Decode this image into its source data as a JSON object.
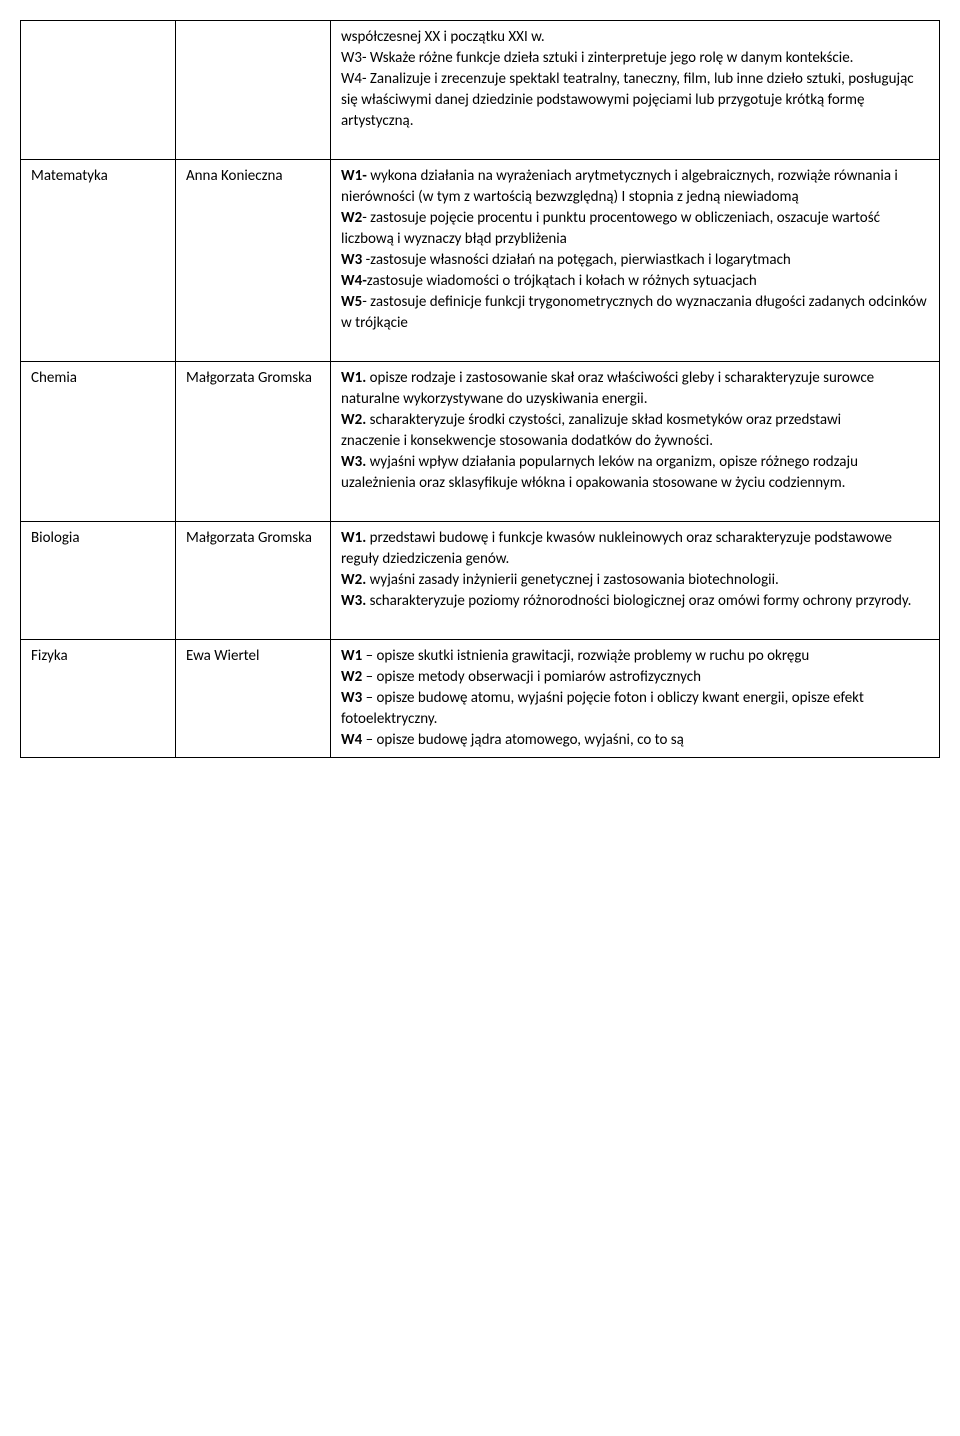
{
  "rows": [
    {
      "subject": "",
      "teacher": "",
      "content_html": "współczesnej XX i początku XXI w.<br>W3- Wskaże różne funkcje dzieła sztuki i zinterpretuje jego rolę w danym kontekście.<br>W4- Zanalizuje i zrecenzuje spektakl teatralny, taneczny, film, lub inne dzieło sztuki, posługując się właściwymi danej dziedzinie podstawowymi pojęciami lub przygotuje krótką formę artystyczną.<br>&nbsp;"
    },
    {
      "subject": "Matematyka",
      "teacher": "Anna Konieczna",
      "content_html": "<span class=\"bold\">W1-</span> wykona działania na wyrażeniach arytmetycznych i algebraicznych, rozwiąże równania i nierówności (w tym z wartością bezwzględną) I stopnia z jedną niewiadomą<br><span class=\"bold\">W2</span>- zastosuje pojęcie procentu i punktu procentowego w obliczeniach, oszacuje wartość liczbową i wyznaczy błąd przybliżenia<br><span class=\"bold\">W3</span> -zastosuje własności działań na potęgach, pierwiastkach i logarytmach<br><span class=\"bold\">W4-</span>zastosuje wiadomości o trójkątach i kołach w różnych sytuacjach<br><span class=\"bold\">W5</span>- zastosuje definicje funkcji trygonometrycznych do wyznaczania długości  zadanych odcinków w trójkącie<br>&nbsp;"
    },
    {
      "subject": "Chemia",
      "teacher": "Małgorzata Gromska",
      "content_html": "<span class=\"bold\">W1.</span> opisze rodzaje i zastosowanie skał oraz właściwości gleby i scharakteryzuje surowce naturalne wykorzystywane do uzyskiwania energii.<br><span class=\"bold\">W2.</span> scharakteryzuje środki czystości, zanalizuje skład kosmetyków oraz przedstawi<br>znaczenie i konsekwencje stosowania dodatków do żywności.<br><span class=\"bold\">W3.</span> wyjaśni wpływ działania popularnych leków na organizm, opisze różnego rodzaju<br>uzależnienia oraz sklasyfikuje włókna i opakowania stosowane w życiu codziennym.<br>&nbsp;"
    },
    {
      "subject": "Biologia",
      "teacher": "Małgorzata Gromska",
      "content_html": "<span class=\"bold\">W1.</span> przedstawi budowę i funkcje kwasów nukleinowych oraz scharakteryzuje podstawowe reguły dziedziczenia genów.<br><span class=\"bold\">W2.</span> wyjaśni zasady inżynierii genetycznej i zastosowania biotechnologii.<br><span class=\"bold\">W3.</span> scharakteryzuje poziomy różnorodności biologicznej oraz omówi formy ochrony przyrody.<br>&nbsp;"
    },
    {
      "subject": "Fizyka",
      "teacher": "Ewa Wiertel",
      "content_html": "<span class=\"bold\">W1</span> – opisze skutki istnienia grawitacji, rozwiąże problemy w ruchu po okręgu<br><span class=\"bold\">W2</span> – opisze metody obserwacji i pomiarów astrofizycznych<br><span class=\"bold\">W3</span> – opisze budowę atomu, wyjaśni pojęcie foton i obliczy kwant energii, opisze efekt fotoelektryczny.<br><span class=\"bold\">W4</span> – opisze budowę jądra atomowego, wyjaśni, co to są"
    }
  ]
}
